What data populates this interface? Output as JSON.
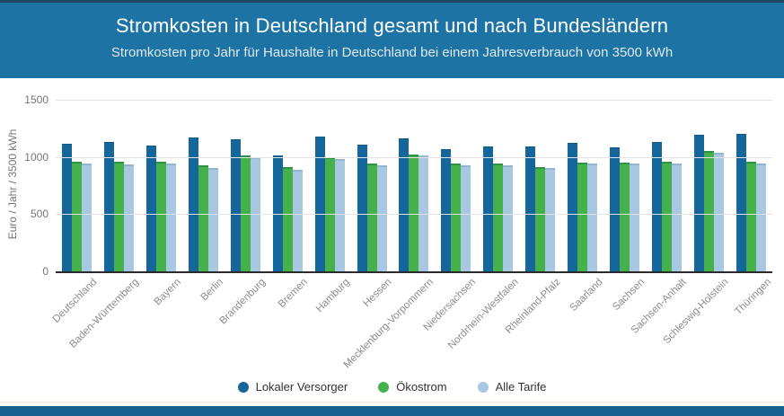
{
  "header": {
    "title": "Stromkosten in Deutschland gesamt und nach Bundesländern",
    "subtitle": "Stromkosten pro Jahr für Haushalte in Deutschland bei einem Jahresverbrauch von 3500 kWh"
  },
  "chart_data": {
    "type": "bar",
    "title": "Stromkosten in Deutschland gesamt und nach Bundesländern",
    "subtitle": "Stromkosten pro Jahr für Haushalte in Deutschland bei einem Jahresverbrauch von 3500 kWh",
    "xlabel": "",
    "ylabel": "Euro / Jahr / 3500 kWh",
    "ylim": [
      0,
      1500
    ],
    "yticks": [
      0,
      500,
      1000,
      1500
    ],
    "grid": true,
    "legend_position": "bottom",
    "categories": [
      "Deutschland",
      "Baden-Württemberg",
      "Bayern",
      "Berlin",
      "Brandenburg",
      "Bremen",
      "Hamburg",
      "Hessen",
      "Mecklenburg-Vorpommern",
      "Niedersachsen",
      "Nordrhein-Westfalen",
      "Rheinland-Pfalz",
      "Saarland",
      "Sachsen",
      "Sachsen-Anhalt",
      "Schleswig-Holstein",
      "Thüringen"
    ],
    "series": [
      {
        "name": "Lokaler Versorger",
        "color": "#15679b",
        "values": [
          1115,
          1130,
          1100,
          1170,
          1155,
          1010,
          1175,
          1105,
          1160,
          1065,
          1095,
          1090,
          1120,
          1085,
          1130,
          1190,
          1200
        ]
      },
      {
        "name": "Ökostrom",
        "color": "#44b14c",
        "values": [
          960,
          955,
          955,
          925,
          1010,
          910,
          1000,
          945,
          1020,
          945,
          940,
          915,
          950,
          950,
          960,
          1050,
          955
        ]
      },
      {
        "name": "Alle Tarife",
        "color": "#a8c8e2",
        "values": [
          945,
          935,
          940,
          905,
          995,
          890,
          985,
          930,
          1010,
          925,
          930,
          900,
          945,
          940,
          940,
          1035,
          945
        ]
      }
    ]
  },
  "colors": {
    "header_bg": "#1d73a4",
    "top_strip": "#1f4662",
    "bottom_bar": "#16618f",
    "gridline": "#e3e3e3",
    "axis_line": "#2b2b2b",
    "tick_label": "#757575",
    "category_label": "#8c8c8c",
    "legend_text": "#333333"
  }
}
